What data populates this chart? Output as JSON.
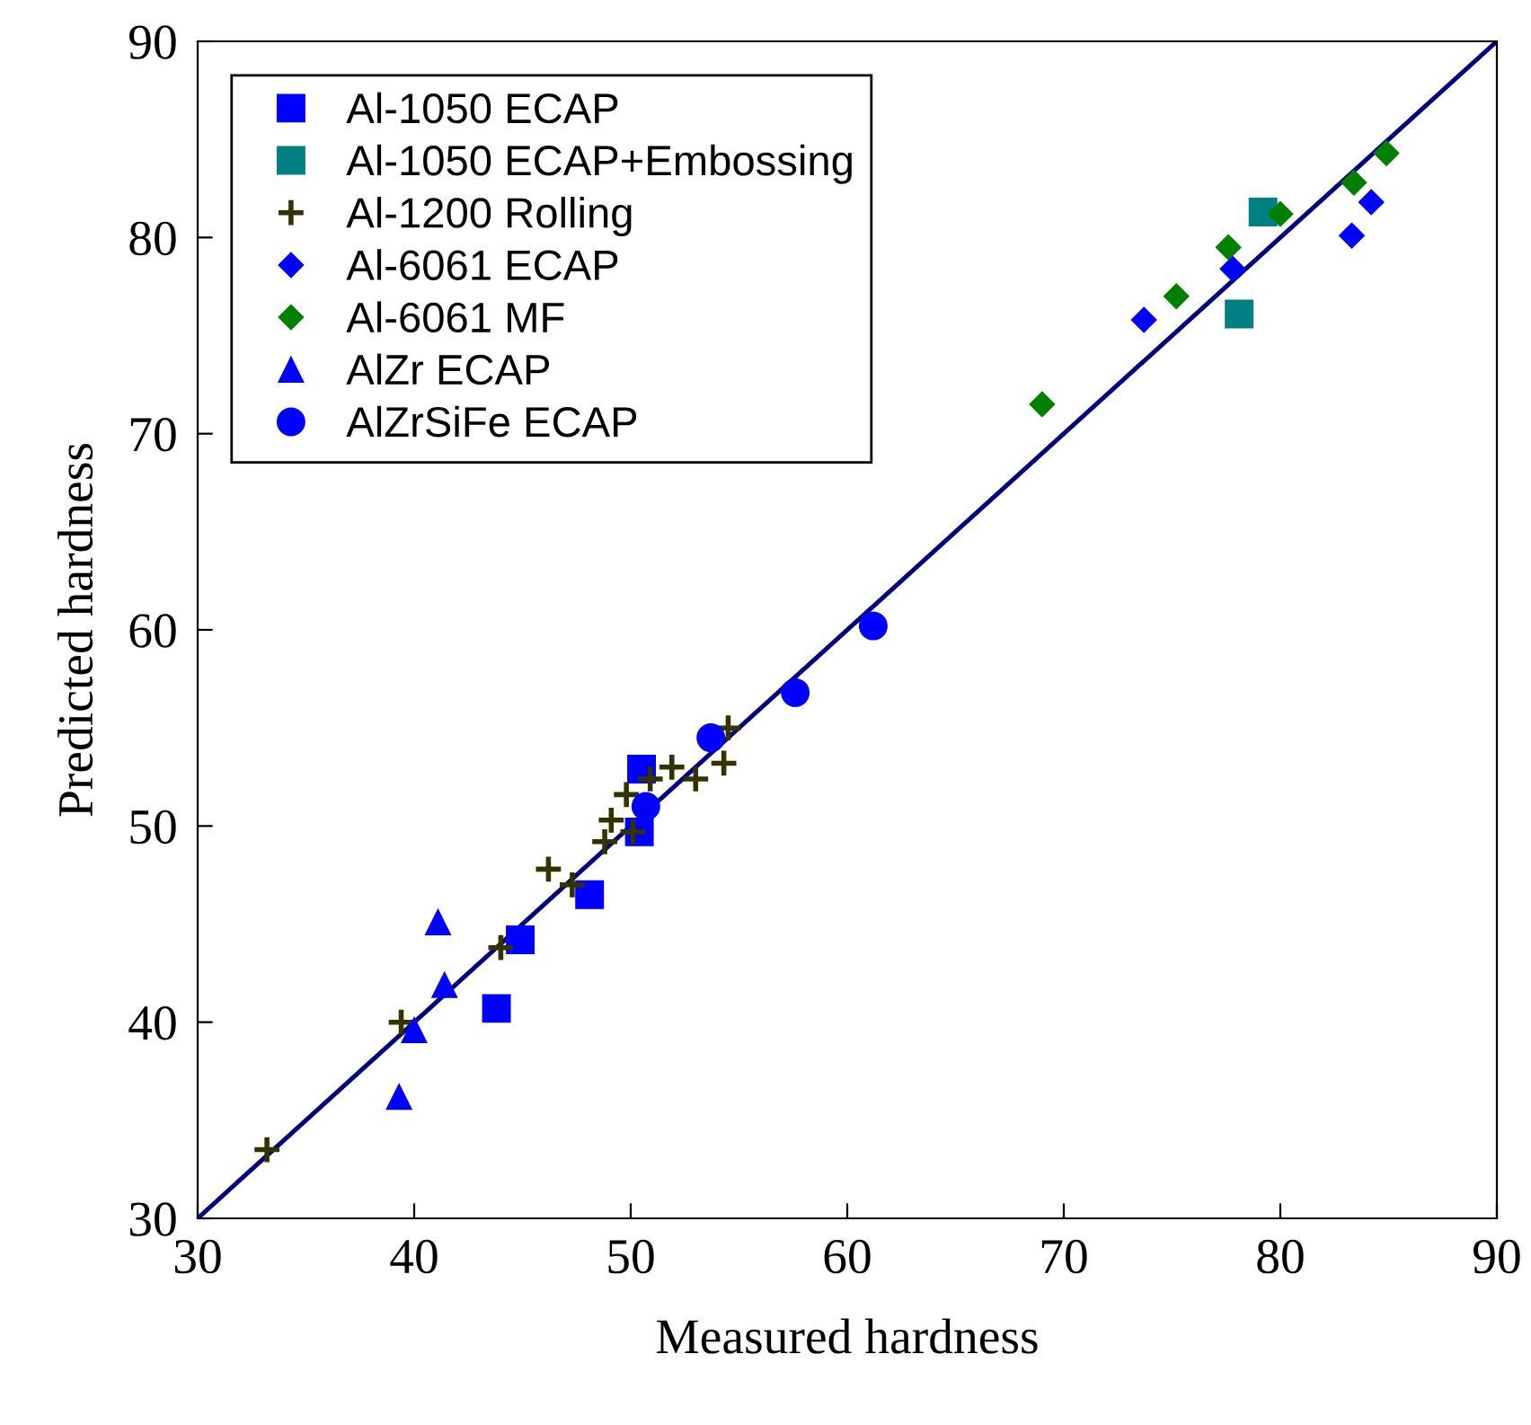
{
  "chart_data": {
    "type": "scatter",
    "xlabel": "Measured hardness",
    "ylabel": "Predicted hardness",
    "xlim": [
      30,
      90
    ],
    "ylim": [
      30,
      90
    ],
    "xticks": [
      30,
      40,
      50,
      60,
      70,
      80,
      90
    ],
    "yticks": [
      30,
      40,
      50,
      60,
      70,
      80,
      90
    ],
    "grid": false,
    "legend": "top left",
    "series": [
      {
        "name": "Al-1050 ECAP",
        "color": "#0000ff",
        "marker": "square",
        "x": [
          50.5,
          50.4,
          48.1,
          44.9,
          43.8
        ],
        "values": [
          52.9,
          49.7,
          46.5,
          44.2,
          40.7
        ]
      },
      {
        "name": "Al-1050 ECAP+Embossing",
        "color": "#008080",
        "marker": "square",
        "x": [
          79.2,
          78.1
        ],
        "values": [
          81.3,
          76.1
        ]
      },
      {
        "name": "Al-1200 Rolling",
        "color": "#333300",
        "marker": "cross",
        "x": [
          33.2,
          39.4,
          44.0,
          46.2,
          47.3,
          48.8,
          49.1,
          50.1,
          49.8,
          50.9,
          51.9,
          53.0,
          54.3,
          54.5
        ],
        "values": [
          33.5,
          40.0,
          43.8,
          47.8,
          47.0,
          49.2,
          50.3,
          49.7,
          51.6,
          52.4,
          53.0,
          52.4,
          53.2,
          55.0
        ]
      },
      {
        "name": "Al-6061 ECAP",
        "color": "#0000ff",
        "marker": "diamond",
        "x": [
          73.7,
          77.8,
          83.3,
          84.2
        ],
        "values": [
          75.8,
          78.4,
          80.1,
          81.8
        ]
      },
      {
        "name": "Al-6061 MF",
        "color": "#008000",
        "marker": "diamond",
        "x": [
          69.0,
          75.2,
          77.6,
          80.0,
          83.4,
          84.9
        ],
        "values": [
          71.5,
          77.0,
          79.5,
          81.2,
          82.8,
          84.3
        ]
      },
      {
        "name": "AlZr ECAP",
        "color": "#0000ff",
        "marker": "triangle",
        "x": [
          41.1,
          41.4,
          40.0,
          39.3
        ],
        "values": [
          45.1,
          41.9,
          39.6,
          36.2
        ]
      },
      {
        "name": "AlZrSiFe ECAP",
        "color": "#0000ff",
        "marker": "circle",
        "x": [
          57.6,
          53.7,
          50.7,
          61.2
        ],
        "values": [
          56.8,
          54.5,
          51.0,
          60.2
        ]
      },
      {
        "type": "line",
        "color": "#000080",
        "marker": "none",
        "line_style": "solid",
        "x": [
          30,
          90
        ],
        "values": [
          30,
          90
        ]
      }
    ]
  }
}
